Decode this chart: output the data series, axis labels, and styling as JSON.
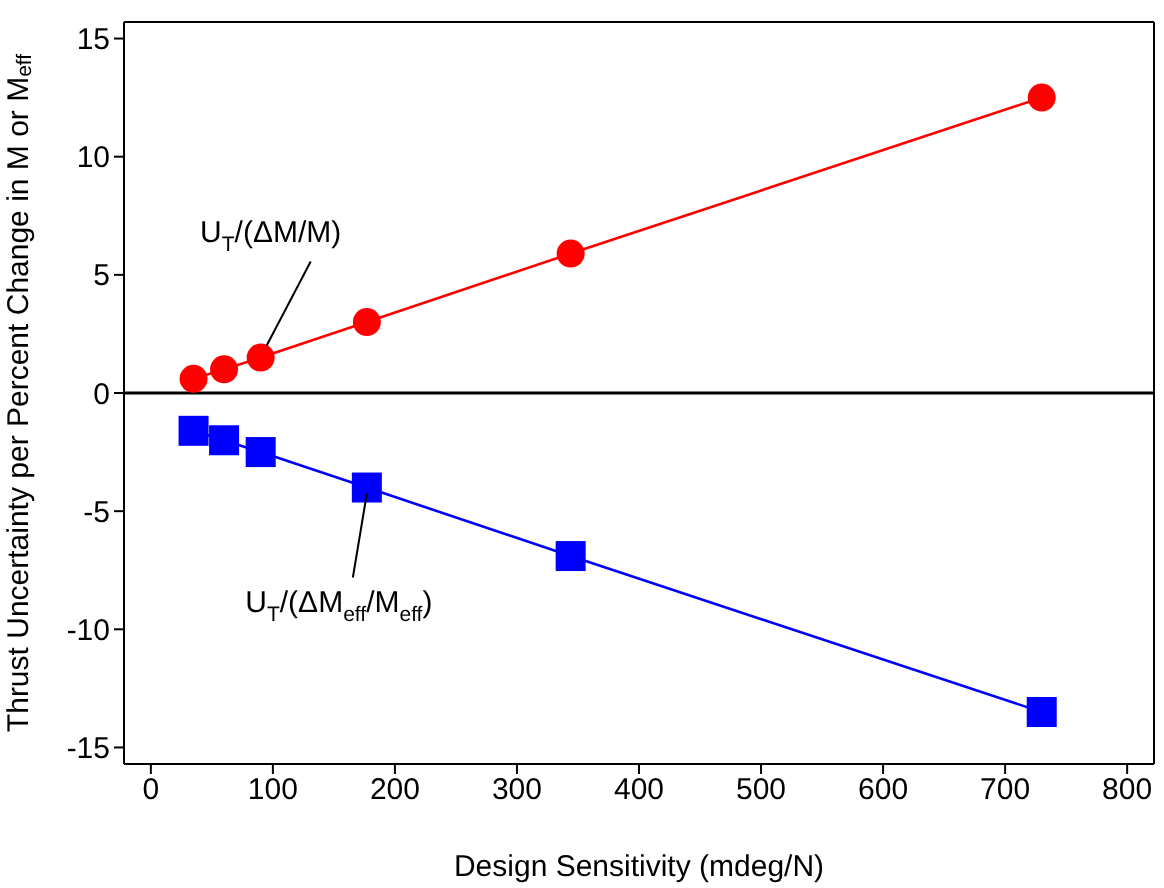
{
  "chart_data": {
    "type": "line",
    "xlabel": "Design Sensitivity (mdeg/N)",
    "ylabel": "Thrust Uncertainty per Percent Change in M or M$_{eff}$",
    "x": [
      35,
      60,
      90,
      177,
      344,
      730
    ],
    "series": [
      {
        "color": "#ff0000",
        "marker": "circle",
        "values": [
          0.6,
          1,
          1.5,
          3,
          5.9,
          12.5
        ]
      },
      {
        "color": "#0000ff",
        "marker": "square",
        "values": [
          -1.6,
          -2,
          -2.5,
          -4,
          -6.9,
          -13.5
        ]
      }
    ],
    "annotations": [
      {
        "text": "U$_{T}$/(ΔM/M)",
        "x": 90,
        "y": 1.5
      },
      {
        "text": "U$_{T}$/(ΔM$_{eff}$/M$_{eff}$)",
        "x": 177,
        "y": -4
      }
    ],
    "ref_lines": [
      {
        "axis": "y",
        "value": 0,
        "color": "#000000"
      }
    ],
    "xlim": [
      -22,
      822
    ],
    "xticks": [
      0,
      100,
      200,
      300,
      400,
      500,
      600,
      700,
      800
    ],
    "ylim": [
      -15.7,
      15.7
    ],
    "yticks": [
      -15,
      -10,
      -5,
      0,
      5,
      10,
      15
    ],
    "grid": false,
    "legend": false
  }
}
